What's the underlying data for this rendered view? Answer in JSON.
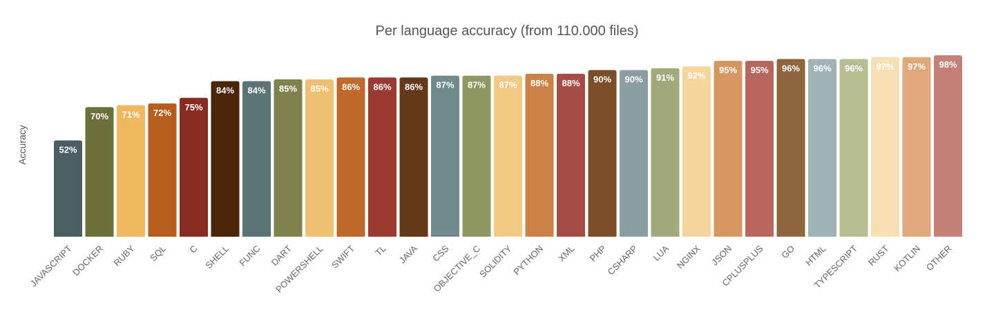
{
  "chart_data": {
    "type": "bar",
    "title": "Per language accuracy (from 110.000 files)",
    "xlabel": "",
    "ylabel": "Accuracy",
    "ylim": [
      0,
      100
    ],
    "grid": false,
    "legend": "none",
    "categories": [
      "JAVASCRIPT",
      "DOCKER",
      "RUBY",
      "SQL",
      "C",
      "SHELL",
      "FUNC",
      "DART",
      "POWERSHELL",
      "SWIFT",
      "TL",
      "JAVA",
      "CSS",
      "OBJECTIVE_C",
      "SOLIDITY",
      "PYTHON",
      "XML",
      "PHP",
      "CSHARP",
      "LUA",
      "NGINX",
      "JSON",
      "CPLUSPLUS",
      "GO",
      "HTML",
      "TYPESCRIPT",
      "RUST",
      "KOTLIN",
      "OTHER"
    ],
    "values": [
      52,
      70,
      71,
      72,
      75,
      84,
      84,
      85,
      85,
      86,
      86,
      86,
      87,
      87,
      87,
      88,
      88,
      90,
      90,
      91,
      92,
      95,
      95,
      96,
      96,
      96,
      97,
      97,
      98
    ],
    "data_labels": [
      "52%",
      "70%",
      "71%",
      "72%",
      "75%",
      "84%",
      "84%",
      "85%",
      "85%",
      "86%",
      "86%",
      "86%",
      "87%",
      "87%",
      "87%",
      "88%",
      "88%",
      "90%",
      "90%",
      "91%",
      "92%",
      "95%",
      "95%",
      "96%",
      "96%",
      "96%",
      "97%",
      "97%",
      "98%"
    ],
    "colors": [
      "#4a5e63",
      "#6b6f3a",
      "#efb75e",
      "#b95d1f",
      "#8a2b22",
      "#4a2509",
      "#5c7375",
      "#7e834e",
      "#f0c072",
      "#c0692c",
      "#9a3a32",
      "#64391a",
      "#728a8c",
      "#8f9763",
      "#f2c985",
      "#cc8244",
      "#a74d47",
      "#7a4e28",
      "#8a9ea1",
      "#a2aa7b",
      "#f5d59b",
      "#d69660",
      "#b7665e",
      "#8f653e",
      "#a0b3b6",
      "#b6bd92",
      "#f6dfb2",
      "#dea87b",
      "#c47f78"
    ]
  }
}
